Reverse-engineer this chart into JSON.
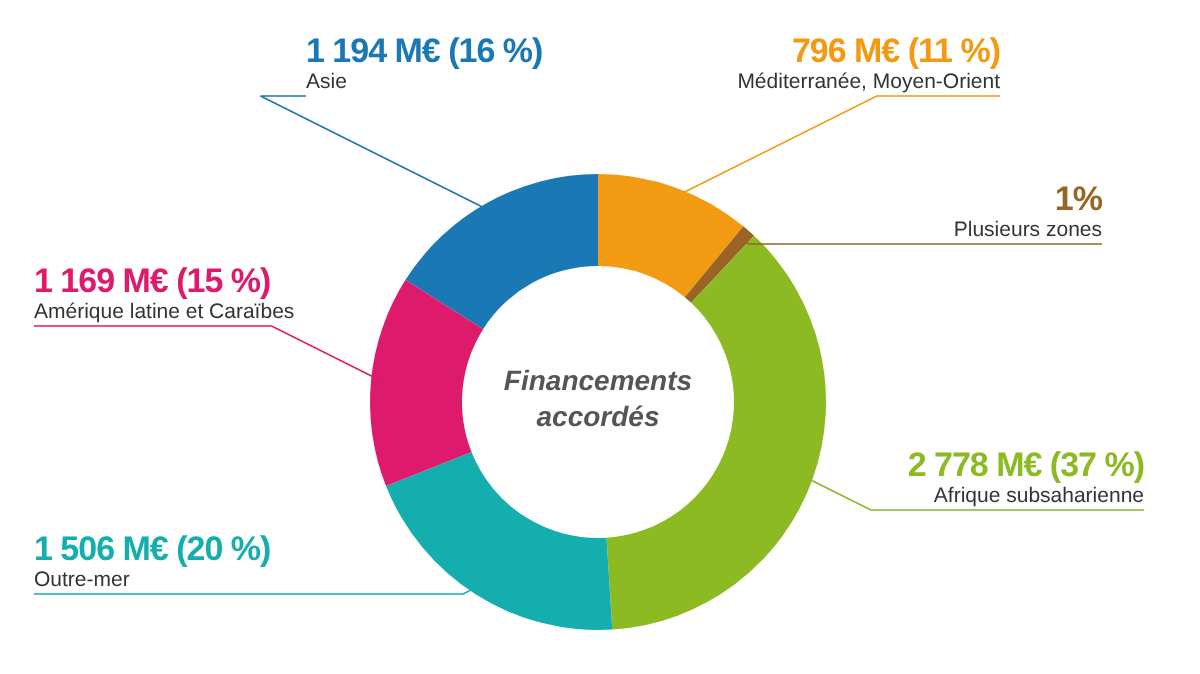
{
  "chart_data": {
    "type": "donut",
    "title": "Financements accordés",
    "categories": [
      "Asie",
      "Méditerranée, Moyen-Orient",
      "Plusieurs zones",
      "Afrique subsaharienne",
      "Outre-mer",
      "Amérique latine et Caraïbes"
    ],
    "values": [
      16,
      11,
      1,
      37,
      20,
      15
    ],
    "value_labels": [
      "1 194 M€ (16 %)",
      "796 M€ (11 %)",
      "1%",
      "2 778 M€ (37 %)",
      "1 506 M€ (20 %)",
      "1 169 M€ (15 %)"
    ],
    "colors": [
      "#1a78b4",
      "#f29a12",
      "#9a6424",
      "#8cba22",
      "#14aeae",
      "#de1a6c"
    ]
  }
}
